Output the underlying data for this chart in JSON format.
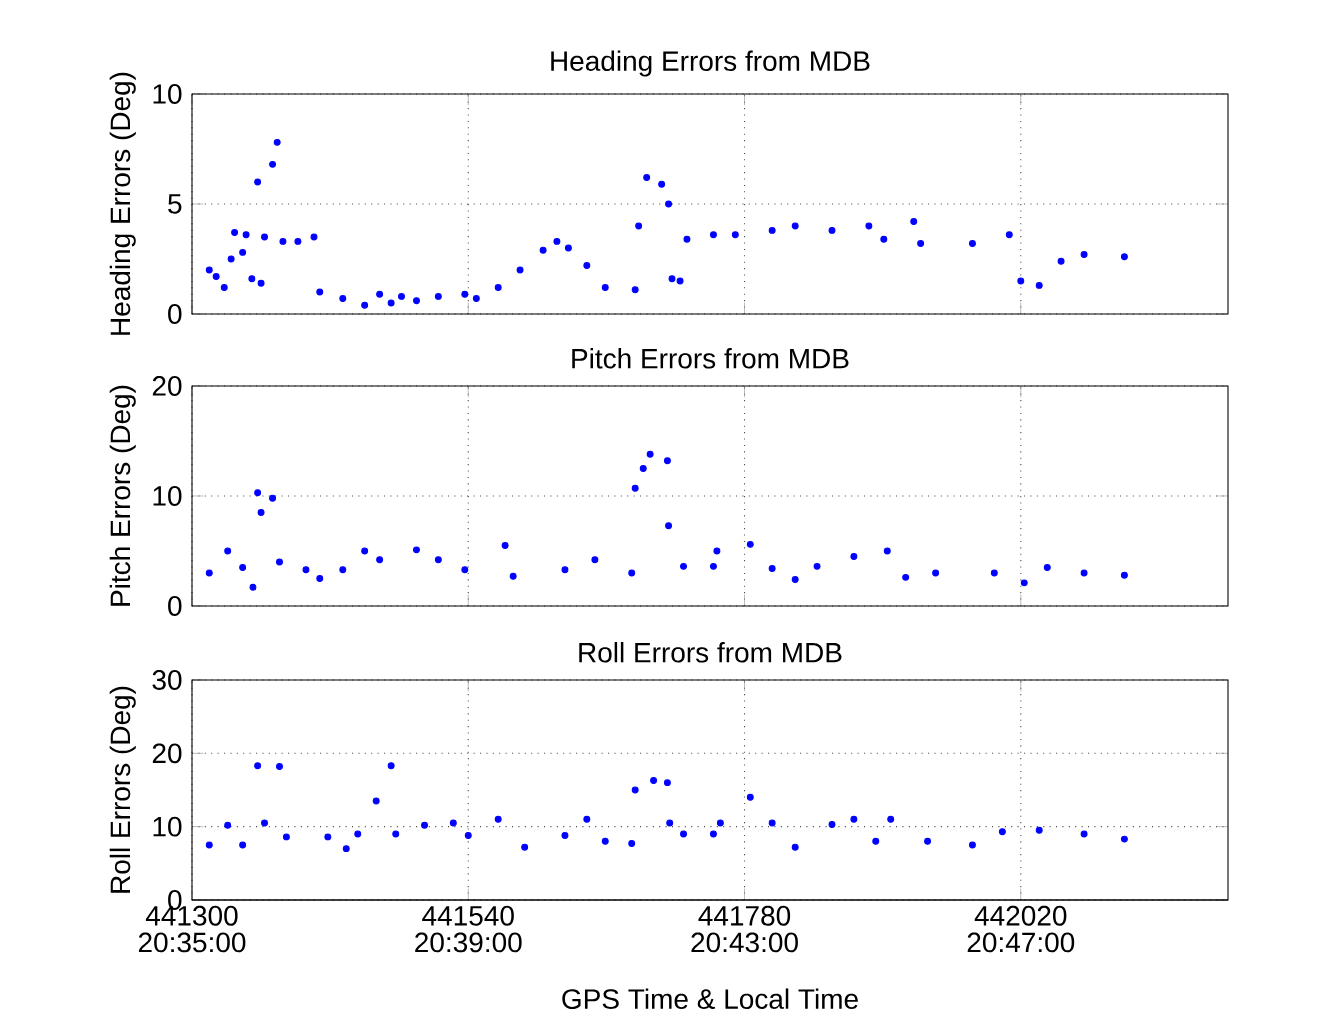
{
  "chart_data": [
    {
      "type": "scatter",
      "title": "Heading Errors from MDB",
      "ylabel": "Heading Errors (Deg)",
      "color": "#0000ff",
      "marker": "circle",
      "grid": true,
      "tick_labels": "y",
      "x": [
        441315,
        441321,
        441328,
        441334,
        441337,
        441344,
        441347,
        441352,
        441357,
        441360,
        441363,
        441370,
        441374,
        441379,
        441392,
        441406,
        441411,
        441431,
        441450,
        441463,
        441473,
        441482,
        441495,
        441514,
        441537,
        441547,
        441566,
        441585,
        441605,
        441617,
        441627,
        441643,
        441659,
        441685,
        441688,
        441695,
        441708,
        441714,
        441717,
        441724,
        441730,
        441753,
        441772,
        441804,
        441824,
        441856,
        441888,
        441901,
        441927,
        441933,
        441978,
        442010,
        442020,
        442036,
        442055,
        442075,
        442110
      ],
      "values": [
        2.0,
        1.7,
        1.2,
        2.5,
        3.7,
        2.8,
        3.6,
        1.6,
        6.0,
        1.4,
        3.5,
        6.8,
        7.8,
        3.3,
        3.3,
        3.5,
        1.0,
        0.7,
        0.4,
        0.9,
        0.5,
        0.8,
        0.6,
        0.8,
        0.9,
        0.7,
        1.2,
        2.0,
        2.9,
        3.3,
        3.0,
        2.2,
        1.2,
        1.1,
        4.0,
        6.2,
        5.9,
        5.0,
        1.6,
        1.5,
        3.4,
        3.6,
        3.6,
        3.8,
        4.0,
        3.8,
        4.0,
        3.4,
        4.2,
        3.2,
        3.2,
        3.6,
        1.5,
        1.3,
        2.4,
        2.7,
        2.6
      ],
      "xlim": [
        441300,
        442200
      ],
      "xticks": [
        441300,
        441540,
        441780,
        442020
      ],
      "ylim": [
        0,
        10
      ],
      "yticks": [
        0,
        5,
        10
      ]
    },
    {
      "type": "scatter",
      "title": "Pitch Errors from MDB",
      "ylabel": "Pitch Errors (Deg)",
      "color": "#0000ff",
      "marker": "circle",
      "grid": true,
      "tick_labels": "y",
      "x": [
        441315,
        441331,
        441344,
        441353,
        441357,
        441360,
        441370,
        441376,
        441399,
        441411,
        441431,
        441450,
        441463,
        441495,
        441514,
        441537,
        441572,
        441579,
        441624,
        441650,
        441682,
        441685,
        441692,
        441698,
        441713,
        441714,
        441727,
        441753,
        441756,
        441785,
        441804,
        441824,
        441843,
        441875,
        441904,
        441920,
        441946,
        441997,
        442023,
        442043,
        442075,
        442110
      ],
      "values": [
        3.0,
        5.0,
        3.5,
        1.7,
        10.3,
        8.5,
        9.8,
        4.0,
        3.3,
        2.5,
        3.3,
        5.0,
        4.2,
        5.1,
        4.2,
        3.3,
        5.5,
        2.7,
        3.3,
        4.2,
        3.0,
        10.7,
        12.5,
        13.8,
        13.2,
        7.3,
        3.6,
        3.6,
        5.0,
        5.6,
        3.4,
        2.4,
        3.6,
        4.5,
        5.0,
        2.6,
        3.0,
        3.0,
        2.1,
        3.5,
        3.0,
        2.8
      ],
      "xlim": [
        441300,
        442200
      ],
      "xticks": [
        441300,
        441540,
        441780,
        442020
      ],
      "ylim": [
        0,
        20
      ],
      "yticks": [
        0,
        10,
        20
      ]
    },
    {
      "type": "scatter",
      "title": "Roll Errors from MDB",
      "ylabel": "Roll Errors (Deg)",
      "xlabel": "GPS Time & Local Time",
      "color": "#0000ff",
      "marker": "circle",
      "grid": true,
      "x": [
        441315,
        441331,
        441344,
        441357,
        441363,
        441376,
        441382,
        441418,
        441434,
        441444,
        441460,
        441473,
        441477,
        441502,
        441527,
        441540,
        441566,
        441589,
        441624,
        441643,
        441659,
        441682,
        441685,
        441701,
        441713,
        441715,
        441727,
        441753,
        441759,
        441785,
        441804,
        441824,
        441856,
        441875,
        441894,
        441907,
        441939,
        441978,
        442004,
        442036,
        442075,
        442110
      ],
      "values": [
        7.5,
        10.2,
        7.5,
        18.3,
        10.5,
        18.2,
        8.6,
        8.6,
        7.0,
        9.0,
        13.5,
        18.3,
        9.0,
        10.2,
        10.5,
        8.8,
        11.0,
        7.2,
        8.8,
        11.0,
        8.0,
        7.7,
        15.0,
        16.3,
        16.0,
        10.5,
        9.0,
        9.0,
        10.5,
        14.0,
        10.5,
        7.2,
        10.3,
        11.0,
        8.0,
        11.0,
        8.0,
        7.5,
        9.3,
        9.5,
        9.0,
        8.3
      ],
      "xlim": [
        441300,
        442200
      ],
      "ylim": [
        0,
        30
      ],
      "yticks": [
        0,
        10,
        20,
        30
      ],
      "xticks": [
        441300,
        441540,
        441780,
        442020
      ],
      "x2lim": [
        20.583333,
        20.833333
      ],
      "x2ticks": [
        {
          "value": 20.583333,
          "label": "20:35:00"
        },
        {
          "value": 20.65,
          "label": "20:39:00"
        },
        {
          "value": 20.716667,
          "label": "20:43:00"
        },
        {
          "value": 20.783333,
          "label": "20:47:00"
        }
      ]
    }
  ]
}
